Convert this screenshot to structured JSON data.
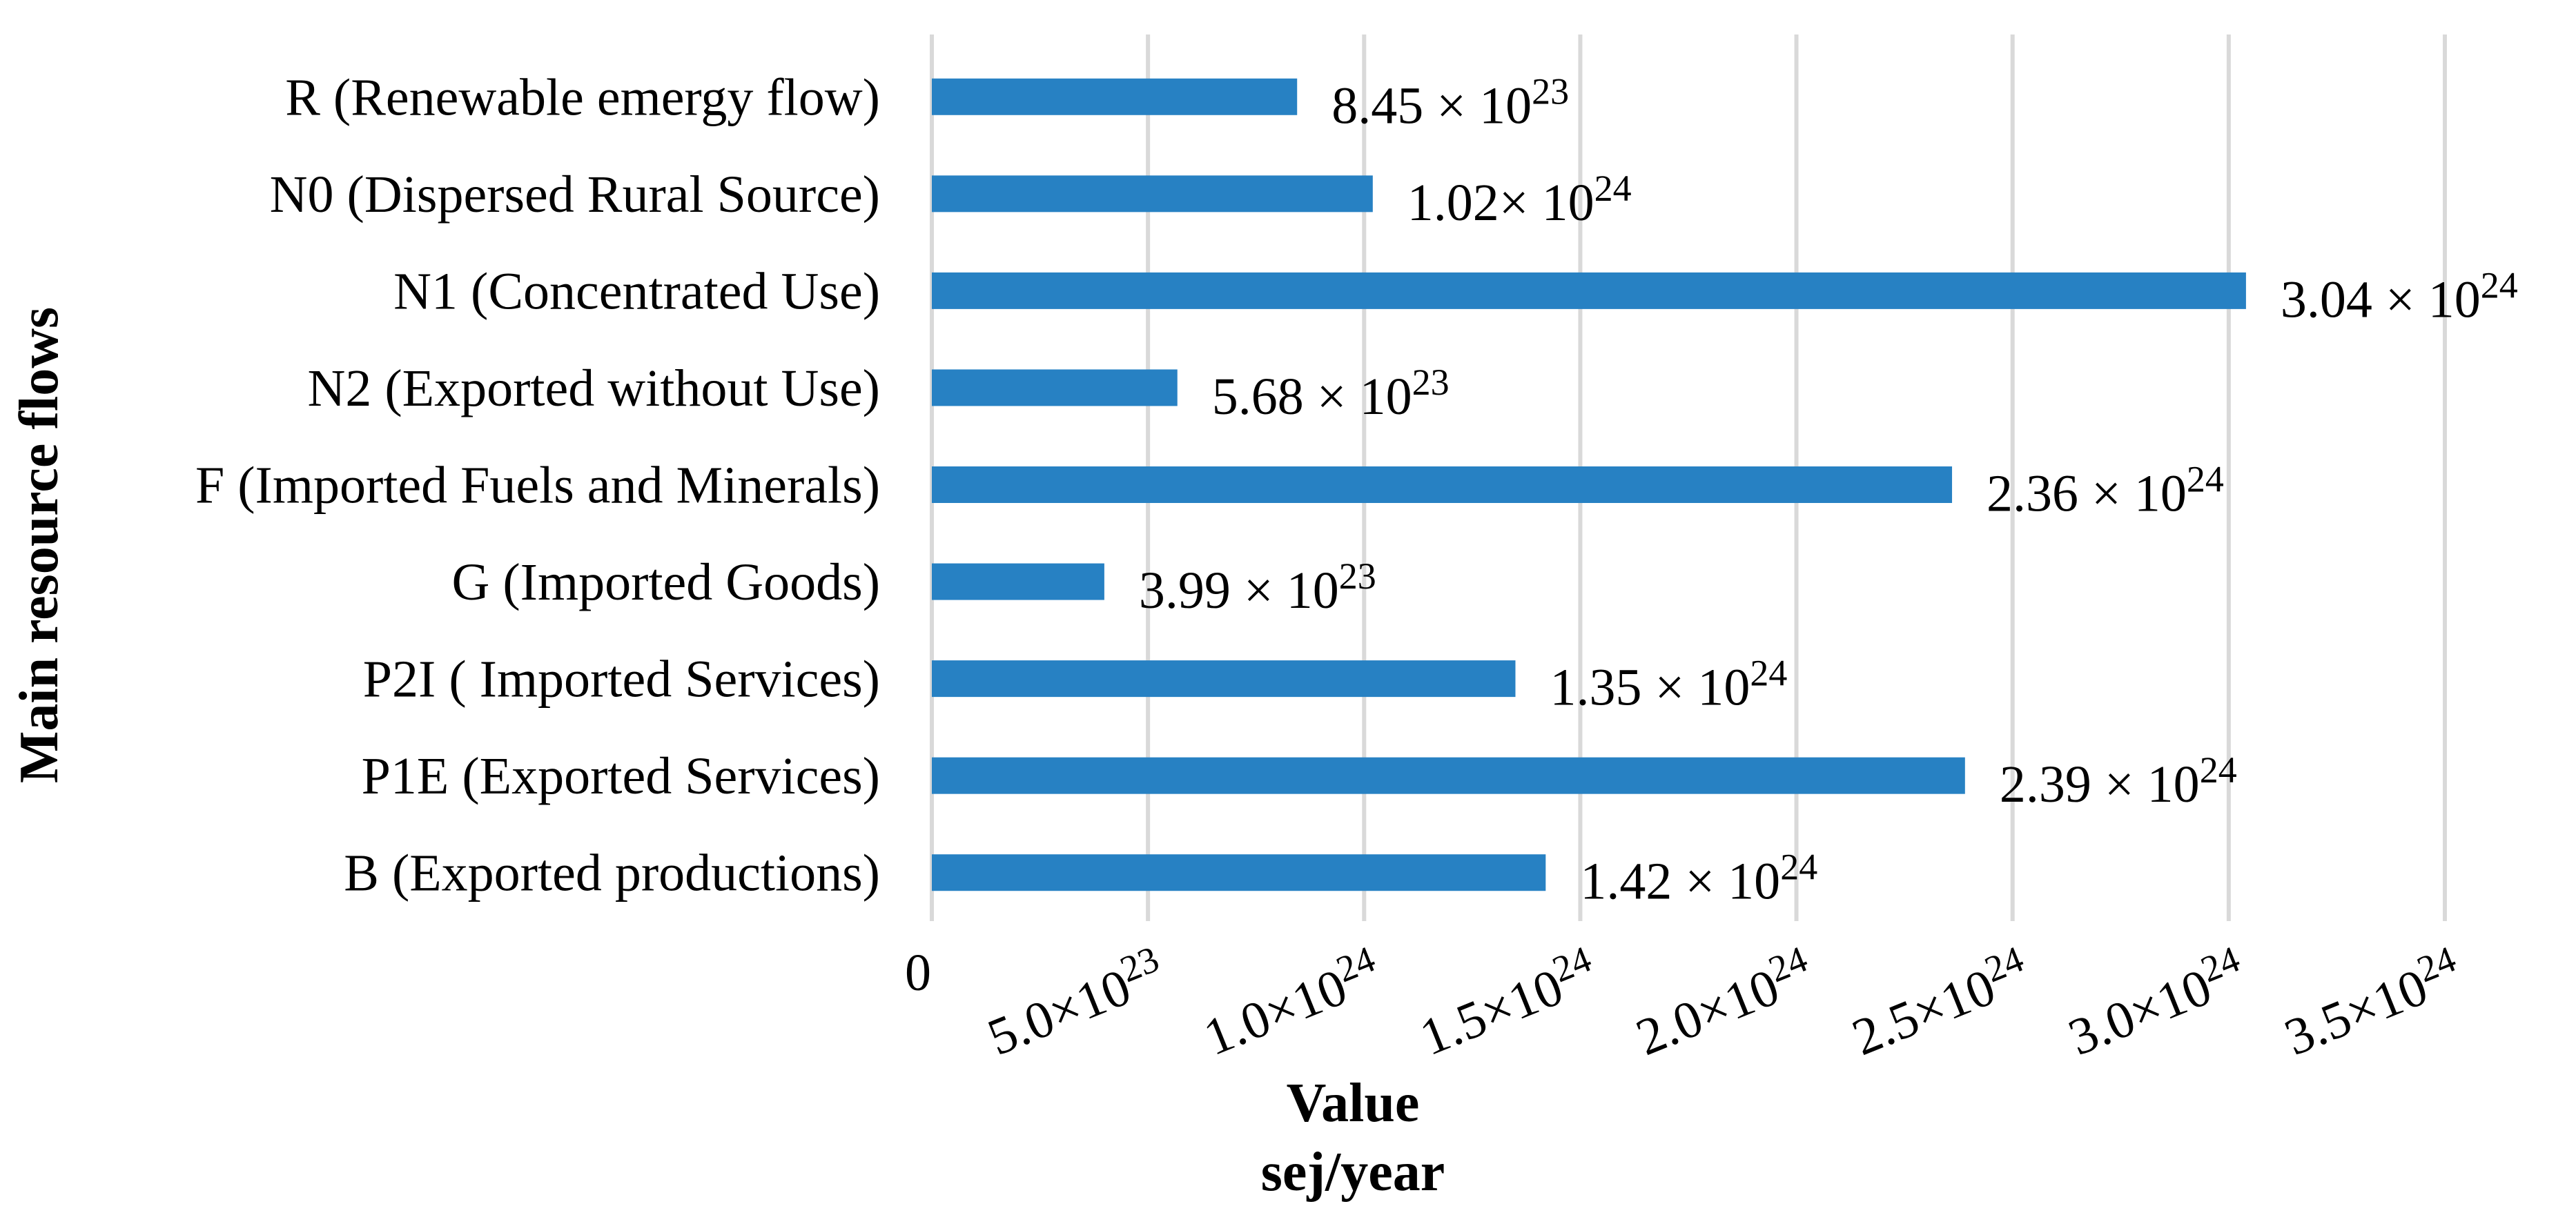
{
  "chart_data": {
    "type": "bar",
    "orientation": "horizontal",
    "categories": [
      "R (Renewable emergy flow)",
      "N0 (Dispersed Rural Source)",
      "N1 (Concentrated Use)",
      "N2 (Exported without Use)",
      "F (Imported Fuels and Minerals)",
      "G (Imported Goods)",
      "P2I ( Imported Services)",
      "P1E (Exported Services)",
      "B (Exported productions)"
    ],
    "values": [
      8.45e+23,
      1.02e+24,
      3.04e+24,
      5.68e+23,
      2.36e+24,
      3.99e+23,
      1.35e+24,
      2.39e+24,
      1.42e+24
    ],
    "data_labels": [
      {
        "mantissa": "8.45 × 10",
        "exp": "23"
      },
      {
        "mantissa": "1.02× 10",
        "exp": "24"
      },
      {
        "mantissa": "3.04 × 10",
        "exp": "24"
      },
      {
        "mantissa": "5.68 × 10",
        "exp": "23"
      },
      {
        "mantissa": "2.36 × 10",
        "exp": "24"
      },
      {
        "mantissa": "3.99 × 10",
        "exp": "23"
      },
      {
        "mantissa": "1.35 × 10",
        "exp": "24"
      },
      {
        "mantissa": "2.39 × 10",
        "exp": "24"
      },
      {
        "mantissa": "1.42 × 10",
        "exp": "24"
      }
    ],
    "xticks": [
      {
        "value": 0,
        "mantissa": "0",
        "exp": ""
      },
      {
        "value": 5e+23,
        "mantissa": "5.0×10",
        "exp": "23"
      },
      {
        "value": 1e+24,
        "mantissa": "1.0×10",
        "exp": "24"
      },
      {
        "value": 1.5e+24,
        "mantissa": "1.5×10",
        "exp": "24"
      },
      {
        "value": 2e+24,
        "mantissa": "2.0×10",
        "exp": "24"
      },
      {
        "value": 2.5e+24,
        "mantissa": "2.5×10",
        "exp": "24"
      },
      {
        "value": 3e+24,
        "mantissa": "3.0×10",
        "exp": "24"
      },
      {
        "value": 3.5e+24,
        "mantissa": "3.5×10",
        "exp": "24"
      }
    ],
    "xlim": [
      0,
      3.5e+24
    ],
    "xlabel": "Value",
    "xlabel_unit": "sej/year",
    "ylabel": "Main resource flows",
    "grid": true,
    "bar_color": "#2781c3"
  }
}
